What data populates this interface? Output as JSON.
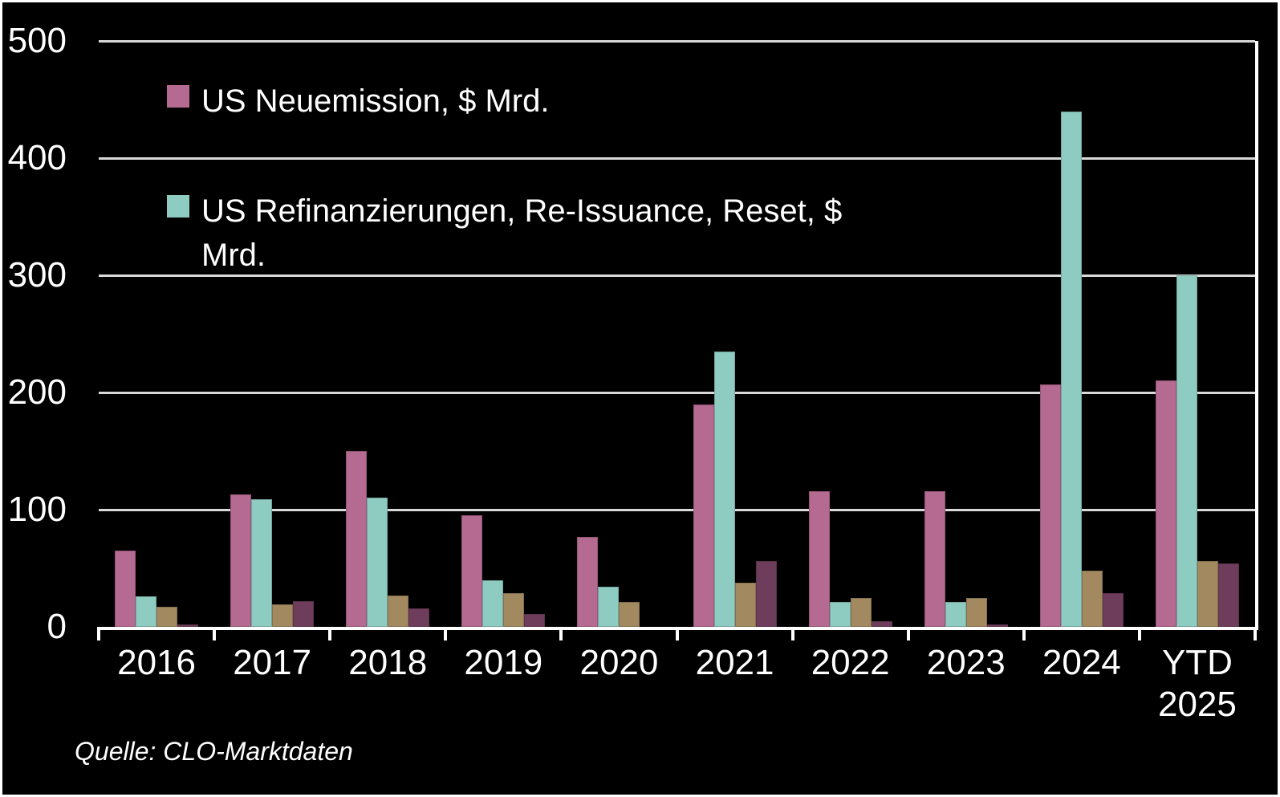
{
  "source_note": "Quelle: CLO-Marktdaten",
  "colors": {
    "background": "#000000",
    "frame_border": "#ffffff",
    "gridline": "#d9d9d9",
    "axis": "#ffffff"
  },
  "chart_data": {
    "type": "bar",
    "title": "",
    "xlabel": "",
    "ylabel": "",
    "categories": [
      "2016",
      "2017",
      "2018",
      "2019",
      "2020",
      "2021",
      "2022",
      "2023",
      "2024",
      "YTD 2025"
    ],
    "series": [
      {
        "name": "US Neuemission, $ Mrd.",
        "color": "#b56a92",
        "values": [
          65,
          113,
          150,
          95,
          77,
          190,
          116,
          116,
          207,
          210
        ]
      },
      {
        "name": "US Refinanzierungen, Re-Issuance, Reset, $ Mrd.",
        "color": "#8ecbc1",
        "values": [
          26,
          109,
          110,
          40,
          34,
          235,
          21,
          21,
          440,
          300
        ]
      },
      {
        "name": "",
        "color": "#a28960",
        "values": [
          17,
          19,
          27,
          29,
          21,
          38,
          25,
          25,
          48,
          56
        ]
      },
      {
        "name": "",
        "color": "#6f3d5c",
        "values": [
          2,
          22,
          16,
          11,
          0,
          56,
          5,
          2,
          29,
          54
        ]
      }
    ],
    "ylim": [
      0,
      500
    ],
    "y_ticks": [
      0,
      100,
      200,
      300,
      400,
      500
    ],
    "grid": "horizontal gridlines on",
    "legend_position": "top-left inside plot",
    "legend_entries": [
      "US Neuemission, $ Mrd.",
      "US Refinanzierungen, Re-Issuance, Reset, $ Mrd."
    ]
  }
}
